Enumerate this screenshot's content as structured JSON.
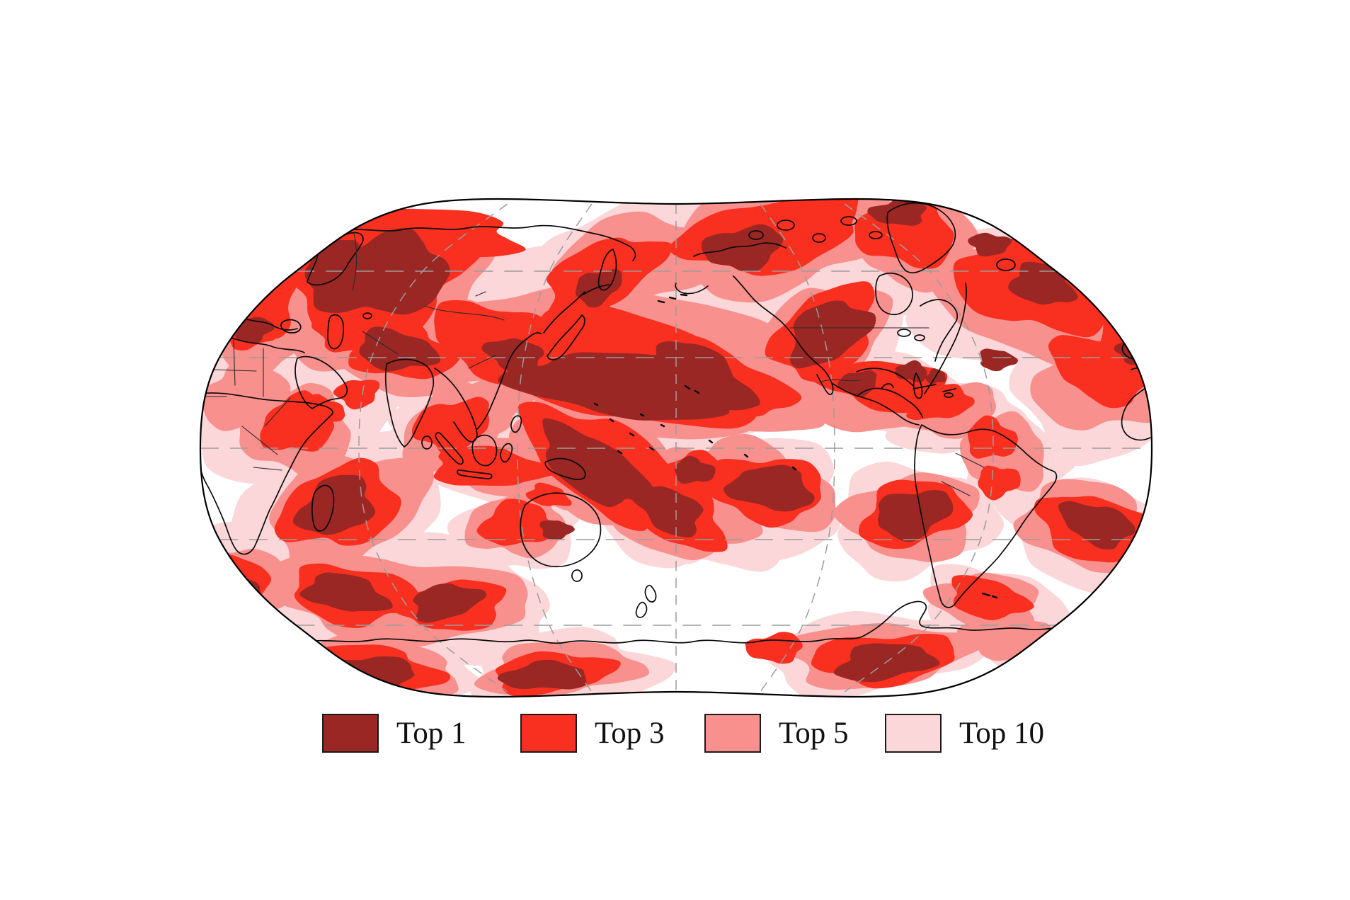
{
  "figure": {
    "background_color": "#ffffff",
    "title": ""
  },
  "map": {
    "kind": "world-temperature-rank-map",
    "projection": "robinson-pacific-centered",
    "outline_color": "#000000",
    "coastline_color": "#0a0a0a",
    "graticule_color": "#9c9c9c",
    "ocean_color": "#ffffff",
    "levels": [
      {
        "id": "top10",
        "label": "Top 10",
        "color": "#fbd7d9"
      },
      {
        "id": "top5",
        "label": "Top 5",
        "color": "#f8908e"
      },
      {
        "id": "top3",
        "label": "Top 3",
        "color": "#f93020"
      },
      {
        "id": "top1",
        "label": "Top 1",
        "color": "#9a2723"
      }
    ],
    "region_fields": [
      "level",
      "name",
      "cx",
      "cy",
      "rx",
      "ry",
      "rot"
    ],
    "regions": [
      [
        "top10",
        "europe-russia-wash",
        500,
        430,
        225,
        150,
        -10
      ],
      [
        "top10",
        "north-africa-arabia-wash",
        400,
        560,
        165,
        110,
        5
      ],
      [
        "top10",
        "west-indian-ocean-wash",
        480,
        730,
        150,
        100,
        -15
      ],
      [
        "top10",
        "south-indian-band-wash",
        560,
        845,
        240,
        80,
        3
      ],
      [
        "top10",
        "south-of-cape-wash",
        330,
        820,
        110,
        70,
        20
      ],
      [
        "top10",
        "central-asia-china-wash",
        620,
        480,
        195,
        95,
        5
      ],
      [
        "top10",
        "southeast-asia-wash",
        690,
        605,
        125,
        70,
        -5
      ],
      [
        "top10",
        "north-pacific-wash",
        880,
        480,
        270,
        130,
        8
      ],
      [
        "top10",
        "bering-wash",
        900,
        360,
        160,
        75,
        -10
      ],
      [
        "top10",
        "west-pacific-equatorial-wash",
        860,
        650,
        190,
        100,
        30
      ],
      [
        "top10",
        "fiji-wash",
        960,
        720,
        140,
        80,
        25
      ],
      [
        "top10",
        "indonesia-south-wash",
        700,
        650,
        140,
        55,
        5
      ],
      [
        "top10",
        "canada-wash",
        1090,
        340,
        190,
        85,
        -8
      ],
      [
        "top10",
        "greenland-wash",
        1290,
        340,
        110,
        75,
        0
      ],
      [
        "top10",
        "north-atlantic-wash",
        1450,
        430,
        170,
        100,
        18
      ],
      [
        "top10",
        "europe-edge-wash",
        1590,
        500,
        90,
        110,
        0
      ],
      [
        "top10",
        "western-us-wash",
        1170,
        500,
        120,
        90,
        -30
      ],
      [
        "top10",
        "gulf-mexico-wash",
        1250,
        560,
        130,
        55,
        5
      ],
      [
        "top10",
        "venezuela-wash",
        1350,
        590,
        90,
        50,
        -5
      ],
      [
        "top10",
        "east-brazil-wash",
        1430,
        650,
        80,
        65,
        0
      ],
      [
        "top10",
        "tropical-atlantic-wash",
        1550,
        560,
        110,
        90,
        5
      ],
      [
        "top10",
        "southwest-pacific-wash",
        1060,
        695,
        140,
        80,
        10
      ],
      [
        "top10",
        "east-of-nz-wash",
        990,
        670,
        90,
        55,
        0
      ],
      [
        "top10",
        "southeast-pacific-wash",
        1290,
        735,
        115,
        75,
        -10
      ],
      [
        "top10",
        "subantarctic-atlantic-wash",
        1400,
        855,
        95,
        55,
        10
      ],
      [
        "top10",
        "south-atlantic-wash",
        1530,
        750,
        120,
        75,
        15
      ],
      [
        "top10",
        "antarctic-wash-1",
        520,
        935,
        160,
        55,
        3
      ],
      [
        "top10",
        "antarctic-wash-2",
        800,
        945,
        140,
        50,
        -3
      ],
      [
        "top10",
        "antarctic-wash-3",
        1240,
        920,
        160,
        55,
        -5
      ],
      [
        "top10",
        "antarctic-wash-4",
        1430,
        895,
        80,
        40,
        5
      ],
      [
        "top10",
        "australia-wash",
        735,
        745,
        90,
        60,
        -10
      ],
      [
        "top10",
        "north-australia-wash",
        780,
        690,
        60,
        30,
        15
      ],
      [
        "top10",
        "hudson-wash",
        1240,
        420,
        60,
        42,
        0
      ],
      [
        "top5",
        "europe-russia",
        520,
        400,
        170,
        105,
        -12
      ],
      [
        "top5",
        "southeast-europe",
        360,
        450,
        85,
        75,
        0
      ],
      [
        "top5",
        "east-africa",
        420,
        610,
        80,
        60,
        0
      ],
      [
        "top5",
        "sahel",
        350,
        560,
        62,
        50,
        0
      ],
      [
        "top5",
        "central-asia",
        600,
        480,
        150,
        75,
        5
      ],
      [
        "top5",
        "south-china",
        680,
        575,
        70,
        40,
        -10
      ],
      [
        "top5",
        "north-pacific",
        880,
        505,
        230,
        100,
        8
      ],
      [
        "top5",
        "northeast-pacific",
        1020,
        540,
        150,
        60,
        15
      ],
      [
        "top5",
        "bering-alaska",
        900,
        370,
        130,
        60,
        -15
      ],
      [
        "top5",
        "arctic-canada",
        1100,
        340,
        160,
        70,
        -8
      ],
      [
        "top5",
        "greenland",
        1290,
        340,
        90,
        60,
        0
      ],
      [
        "top5",
        "north-atlantic",
        1450,
        420,
        140,
        80,
        18
      ],
      [
        "top5",
        "europe-edge",
        1600,
        480,
        70,
        80,
        0
      ],
      [
        "top5",
        "western-us",
        1160,
        480,
        95,
        70,
        -30
      ],
      [
        "top5",
        "mexico-gulf",
        1230,
        560,
        110,
        45,
        5
      ],
      [
        "top5",
        "caribbean-venezuela",
        1340,
        580,
        70,
        35,
        -5
      ],
      [
        "top5",
        "east-brazil",
        1420,
        640,
        60,
        50,
        0
      ],
      [
        "top5",
        "tropical-atlantic",
        1555,
        540,
        90,
        70,
        5
      ],
      [
        "top5",
        "coral-sea",
        850,
        650,
        150,
        80,
        35
      ],
      [
        "top5",
        "fiji",
        950,
        720,
        110,
        60,
        25
      ],
      [
        "top5",
        "south-of-indonesia",
        700,
        655,
        110,
        40,
        5
      ],
      [
        "top5",
        "bay-of-bengal",
        640,
        600,
        75,
        50,
        -20
      ],
      [
        "top5",
        "southwest-pacific",
        1070,
        690,
        110,
        60,
        10
      ],
      [
        "top5",
        "east-of-new-zealand",
        990,
        670,
        65,
        40,
        0
      ],
      [
        "top5",
        "southeast-pacific",
        1290,
        730,
        95,
        60,
        -10
      ],
      [
        "top5",
        "subantarctic-atlantic",
        1395,
        850,
        75,
        40,
        10
      ],
      [
        "top5",
        "south-atlantic",
        1540,
        745,
        100,
        60,
        15
      ],
      [
        "top5",
        "madagascar-basin",
        490,
        720,
        115,
        75,
        -20
      ],
      [
        "top5",
        "south-indian-band",
        560,
        845,
        190,
        60,
        3
      ],
      [
        "top5",
        "south-of-cape",
        325,
        825,
        85,
        55,
        20
      ],
      [
        "top5",
        "antarctic-1",
        520,
        940,
        130,
        40,
        3
      ],
      [
        "top5",
        "antarctic-2",
        790,
        945,
        110,
        38,
        -3
      ],
      [
        "top5",
        "antarctic-3",
        1240,
        925,
        130,
        45,
        -5
      ],
      [
        "top5",
        "antarctic-4",
        1420,
        900,
        60,
        30,
        5
      ],
      [
        "top5",
        "australia-center",
        730,
        740,
        70,
        45,
        -10
      ],
      [
        "top5",
        "australia-north",
        780,
        695,
        45,
        22,
        15
      ],
      [
        "top5",
        "caspian",
        495,
        470,
        60,
        40,
        -10
      ],
      [
        "top3",
        "northwest-russia",
        540,
        390,
        130,
        80,
        -15
      ],
      [
        "top3",
        "europe",
        360,
        420,
        60,
        55,
        0
      ],
      [
        "top3",
        "arctic-russia-coast",
        560,
        330,
        180,
        35,
        3
      ],
      [
        "top3",
        "tibet",
        565,
        495,
        75,
        40,
        5
      ],
      [
        "top3",
        "balkans-turkey",
        356,
        465,
        40,
        26,
        0
      ],
      [
        "top3",
        "east-china",
        700,
        480,
        90,
        50,
        10
      ],
      [
        "top3",
        "japan",
        790,
        470,
        45,
        30,
        -30
      ],
      [
        "top3",
        "north-pacific",
        870,
        520,
        190,
        75,
        8
      ],
      [
        "top3",
        "bering-arm",
        850,
        390,
        90,
        45,
        -25
      ],
      [
        "top3",
        "hawaii-arm",
        1000,
        530,
        120,
        45,
        20
      ],
      [
        "top3",
        "arctic-canada",
        1090,
        330,
        130,
        50,
        -8
      ],
      [
        "top3",
        "greenland",
        1280,
        330,
        70,
        45,
        0
      ],
      [
        "top3",
        "north-atlantic",
        1460,
        405,
        110,
        60,
        18
      ],
      [
        "top3",
        "europe-edge",
        1600,
        470,
        50,
        60,
        0
      ],
      [
        "top3",
        "western-us",
        1165,
        470,
        80,
        55,
        -35
      ],
      [
        "top3",
        "gulf-caribbean",
        1255,
        545,
        90,
        35,
        5
      ],
      [
        "top3",
        "venezuela",
        1330,
        570,
        45,
        22,
        -10
      ],
      [
        "top3",
        "east-brazil-1",
        1400,
        620,
        35,
        28,
        0
      ],
      [
        "top3",
        "east-brazil-2",
        1410,
        680,
        30,
        22,
        0
      ],
      [
        "top3",
        "tropical-atlantic",
        1560,
        520,
        75,
        45,
        10
      ],
      [
        "top3",
        "coral-sea",
        850,
        655,
        120,
        60,
        35
      ],
      [
        "top3",
        "fiji",
        950,
        720,
        80,
        45,
        25
      ],
      [
        "top3",
        "south-of-java",
        690,
        660,
        80,
        28,
        5
      ],
      [
        "top3",
        "bay-of-bengal",
        640,
        600,
        55,
        35,
        -20
      ],
      [
        "top3",
        "southwest-pacific",
        1080,
        690,
        85,
        45,
        10
      ],
      [
        "top3",
        "east-of-new-zealand",
        985,
        668,
        45,
        28,
        0
      ],
      [
        "top3",
        "southeast-pacific",
        1290,
        725,
        75,
        45,
        -10
      ],
      [
        "top3",
        "subantarctic-atlantic",
        1395,
        845,
        55,
        28,
        10
      ],
      [
        "top3",
        "south-atlantic",
        1545,
        745,
        80,
        45,
        15
      ],
      [
        "top3",
        "madagascar-basin",
        480,
        715,
        85,
        55,
        -20
      ],
      [
        "top3",
        "east-africa",
        420,
        600,
        50,
        40,
        0
      ],
      [
        "top3",
        "horn-of-africa",
        455,
        580,
        30,
        20,
        0
      ],
      [
        "top3",
        "south-indian-1",
        500,
        840,
        90,
        40,
        8
      ],
      [
        "top3",
        "south-indian-2",
        640,
        855,
        75,
        35,
        -8
      ],
      [
        "top3",
        "south-of-cape",
        320,
        825,
        65,
        40,
        20
      ],
      [
        "top3",
        "antarctic-1",
        520,
        945,
        100,
        32,
        3
      ],
      [
        "top3",
        "antarctic-2",
        780,
        950,
        85,
        28,
        -3
      ],
      [
        "top3",
        "antarctic-3",
        1250,
        930,
        100,
        35,
        -5
      ],
      [
        "top3",
        "antarctic-4",
        1095,
        915,
        40,
        20,
        0
      ],
      [
        "top3",
        "australia-center",
        730,
        740,
        50,
        32,
        -10
      ],
      [
        "top3",
        "australia-north",
        775,
        700,
        30,
        15,
        15
      ],
      [
        "top3",
        "caspian-mideast",
        490,
        465,
        45,
        30,
        -10
      ],
      [
        "top3",
        "persian-gulf",
        505,
        555,
        30,
        20,
        0
      ],
      [
        "top1",
        "northwest-russia",
        540,
        390,
        95,
        55,
        -15
      ],
      [
        "top1",
        "scandinavia",
        470,
        370,
        45,
        30,
        -30
      ],
      [
        "top1",
        "tibet-tienshan",
        560,
        495,
        55,
        28,
        5
      ],
      [
        "top1",
        "balkans-turkey",
        356,
        465,
        28,
        18,
        0
      ],
      [
        "top1",
        "yellow-sea",
        728,
        502,
        40,
        24,
        10
      ],
      [
        "top1",
        "north-pacific-core",
        880,
        545,
        150,
        45,
        8
      ],
      [
        "top1",
        "hawaii-core",
        990,
        530,
        80,
        35,
        25
      ],
      [
        "top1",
        "okhotsk",
        845,
        405,
        35,
        22,
        -20
      ],
      [
        "top1",
        "arctic-canada",
        1050,
        350,
        55,
        30,
        -12
      ],
      [
        "top1",
        "greenland-north",
        1270,
        300,
        40,
        18,
        0
      ],
      [
        "top1",
        "western-us",
        1170,
        470,
        60,
        40,
        -35
      ],
      [
        "top1",
        "northeast-atlantic",
        1472,
        402,
        45,
        28,
        20
      ],
      [
        "top1",
        "iceland-sea",
        1398,
        345,
        28,
        16,
        0
      ],
      [
        "top1",
        "gulf-of-mexico",
        1213,
        541,
        27,
        17,
        0
      ],
      [
        "top1",
        "florida-bahamas",
        1288,
        525,
        22,
        14,
        0
      ],
      [
        "top1",
        "venezuela-coast",
        1322,
        532,
        14,
        10,
        0
      ],
      [
        "top1",
        "east-caribbean",
        1408,
        508,
        25,
        15,
        0
      ],
      [
        "top1",
        "coral-sea-core",
        840,
        660,
        90,
        38,
        35
      ],
      [
        "top1",
        "fiji-core",
        945,
        720,
        50,
        30,
        25
      ],
      [
        "top1",
        "southwest-pacific-core",
        1090,
        690,
        60,
        30,
        10
      ],
      [
        "top1",
        "east-of-nz-core",
        980,
        665,
        28,
        18,
        0
      ],
      [
        "top1",
        "southeast-pacific-core",
        1290,
        725,
        55,
        32,
        -10
      ],
      [
        "top1",
        "south-atlantic-core",
        1550,
        740,
        52,
        28,
        15
      ],
      [
        "top1",
        "madagascar-core",
        475,
        715,
        55,
        38,
        -20
      ],
      [
        "top1",
        "south-indian-core-1",
        488,
        838,
        58,
        26,
        8
      ],
      [
        "top1",
        "south-indian-core-2",
        630,
        850,
        50,
        24,
        -8
      ],
      [
        "top1",
        "south-of-cape-core",
        320,
        830,
        45,
        28,
        20
      ],
      [
        "top1",
        "antarctic-core-1",
        520,
        950,
        70,
        22,
        3
      ],
      [
        "top1",
        "antarctic-core-2",
        770,
        955,
        60,
        20,
        -3
      ],
      [
        "top1",
        "antarctic-peninsula",
        1250,
        935,
        70,
        25,
        -5
      ],
      [
        "top1",
        "australia-core",
        785,
        748,
        22,
        14,
        0
      ],
      [
        "top1",
        "mediterranean-edge",
        1605,
        495,
        28,
        18,
        0
      ]
    ]
  },
  "legend": {
    "items": [
      {
        "label": "Top 1",
        "color": "#9a2723"
      },
      {
        "label": "Top 3",
        "color": "#f93020"
      },
      {
        "label": "Top 5",
        "color": "#f8908e"
      },
      {
        "label": "Top 10",
        "color": "#fbd7d9"
      }
    ]
  }
}
